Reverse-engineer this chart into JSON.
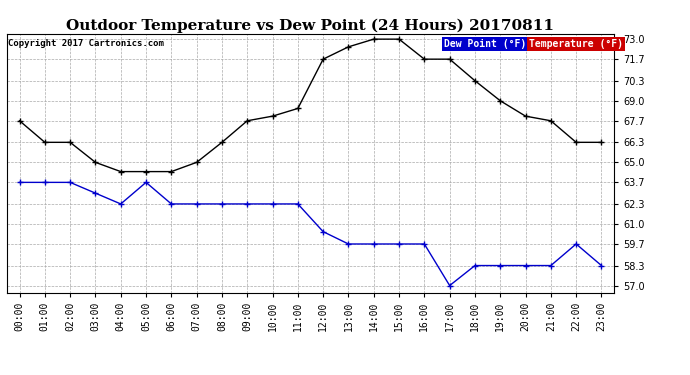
{
  "title": "Outdoor Temperature vs Dew Point (24 Hours) 20170811",
  "copyright": "Copyright 2017 Cartronics.com",
  "legend_dew": "Dew Point (°F)",
  "legend_temp": "Temperature (°F)",
  "hours": [
    0,
    1,
    2,
    3,
    4,
    5,
    6,
    7,
    8,
    9,
    10,
    11,
    12,
    13,
    14,
    15,
    16,
    17,
    18,
    19,
    20,
    21,
    22,
    23
  ],
  "temperature": [
    67.7,
    66.3,
    66.3,
    65.0,
    64.4,
    64.4,
    64.4,
    65.0,
    66.3,
    67.7,
    68.0,
    68.5,
    71.7,
    72.5,
    73.0,
    73.0,
    71.7,
    71.7,
    70.3,
    69.0,
    68.0,
    67.7,
    66.3,
    66.3
  ],
  "dew_point": [
    63.7,
    63.7,
    63.7,
    63.0,
    62.3,
    63.7,
    62.3,
    62.3,
    62.3,
    62.3,
    62.3,
    62.3,
    60.5,
    59.7,
    59.7,
    59.7,
    59.7,
    57.0,
    58.3,
    58.3,
    58.3,
    58.3,
    59.7,
    58.3
  ],
  "temp_color": "#000000",
  "dew_color": "#0000CC",
  "legend_dew_bg": "#0000CC",
  "legend_temp_bg": "#CC0000",
  "bg_color": "#FFFFFF",
  "grid_color": "#AAAAAA",
  "ylim": [
    56.55,
    73.35
  ],
  "yticks": [
    57.0,
    58.3,
    59.7,
    61.0,
    62.3,
    63.7,
    65.0,
    66.3,
    67.7,
    69.0,
    70.3,
    71.7,
    73.0
  ],
  "title_fontsize": 11,
  "copyright_fontsize": 6.5,
  "legend_fontsize": 7,
  "tick_fontsize": 7,
  "marker_size": 4,
  "line_width": 1.0
}
